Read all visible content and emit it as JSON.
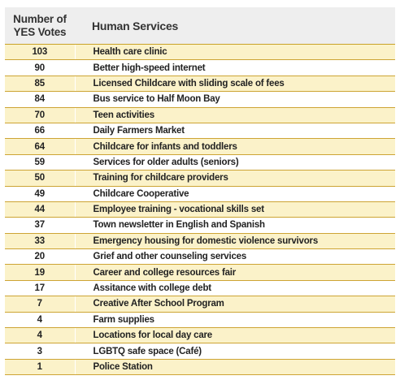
{
  "header": {
    "votes_line1": "Number of",
    "votes_line2": "YES Votes",
    "service": "Human Services"
  },
  "rows": [
    {
      "votes": "103",
      "service": "Health care clinic"
    },
    {
      "votes": "90",
      "service": "Better high-speed internet"
    },
    {
      "votes": "85",
      "service": "Licensed Childcare with sliding scale of fees"
    },
    {
      "votes": "84",
      "service": "Bus service to Half Moon Bay"
    },
    {
      "votes": "70",
      "service": "Teen activities"
    },
    {
      "votes": "66",
      "service": "Daily Farmers Market"
    },
    {
      "votes": "64",
      "service": "Childcare for infants and toddlers"
    },
    {
      "votes": "59",
      "service": "Services for older adults (seniors)"
    },
    {
      "votes": "50",
      "service": "Training for childcare providers"
    },
    {
      "votes": "49",
      "service": "Childcare Cooperative"
    },
    {
      "votes": "44",
      "service": "Employee training - vocational skills set"
    },
    {
      "votes": "37",
      "service": "Town newsletter in English and Spanish"
    },
    {
      "votes": "33",
      "service": "Emergency housing for domestic violence survivors"
    },
    {
      "votes": "20",
      "service": "Grief and other counseling services"
    },
    {
      "votes": "19",
      "service": "Career and college resources fair"
    },
    {
      "votes": "17",
      "service": "Assitance with college debt"
    },
    {
      "votes": "7",
      "service": "Creative After School Program"
    },
    {
      "votes": "4",
      "service": "Farm supplies"
    },
    {
      "votes": "4",
      "service": "Locations for local day care"
    },
    {
      "votes": "3",
      "service": "LGBTQ safe space (Café)"
    },
    {
      "votes": "1",
      "service": "Police Station"
    }
  ]
}
